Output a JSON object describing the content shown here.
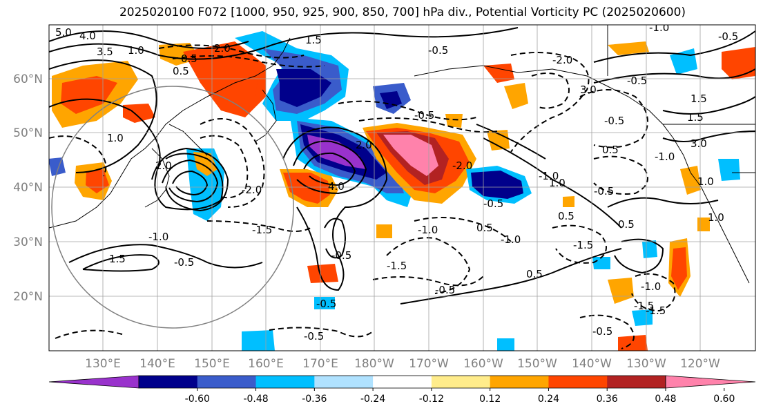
{
  "title": "2025020100 F072 [1000, 950, 925, 900, 850, 700] hPa div., Potential Vorticity PC (2025020600)",
  "lat_labels": [
    "20°N",
    "30°N",
    "40°N",
    "50°N",
    "60°N"
  ],
  "lon_labels": [
    "130°E",
    "140°E",
    "150°E",
    "160°E",
    "170°E",
    "180°W",
    "170°W",
    "160°W",
    "150°W",
    "140°W",
    "130°W",
    "120°W"
  ],
  "colorbar": {
    "colors": [
      "#9932cc",
      "#00008b",
      "#3a5ccb",
      "#00bfff",
      "#b0e2ff",
      "#ffffff",
      "#ffec8b",
      "#ffa500",
      "#ff4500",
      "#b22222",
      "#ff82ab"
    ],
    "tick_labels": [
      "-0.60",
      "-0.48",
      "-0.36",
      "-0.24",
      "-0.12",
      "0.12",
      "0.24",
      "0.36",
      "0.48",
      "0.60"
    ],
    "tick_values": [
      -0.6,
      -0.48,
      -0.36,
      -0.24,
      -0.12,
      0.12,
      0.24,
      0.36,
      0.48,
      0.6
    ]
  },
  "contour_labels": [
    "5.0",
    "4.0",
    "3.5",
    "2.0",
    "1.5",
    "1.0",
    "0.5",
    "-2.0",
    "-1.5",
    "-1.0",
    "-0.5",
    "3.0",
    "1.0",
    "4.0",
    "1.5",
    "-1.0",
    "-0.5",
    "-1.5",
    "-0.5",
    "-0.5",
    "0.5",
    "-1.0",
    "-2.0",
    "2.0",
    "-0.5",
    "1.5",
    "-1.0",
    "-0.5",
    "-1.0",
    "0.5",
    "-1.5",
    "-0.5",
    "-0.5",
    "0.5",
    "-1.5",
    "-1.0",
    "-0.5",
    "1.5",
    "0.5",
    "3.0",
    "2.0",
    "-2.0",
    "0.5",
    "-0.5",
    "1.0",
    "0.5",
    "1.0",
    "-1.5",
    "-0.5",
    "-0.5",
    "-1.0",
    "1.0",
    "-0.5"
  ],
  "features": {
    "coastline": "coastline",
    "gridlines": "graticule",
    "range_circle": "range-circle"
  }
}
